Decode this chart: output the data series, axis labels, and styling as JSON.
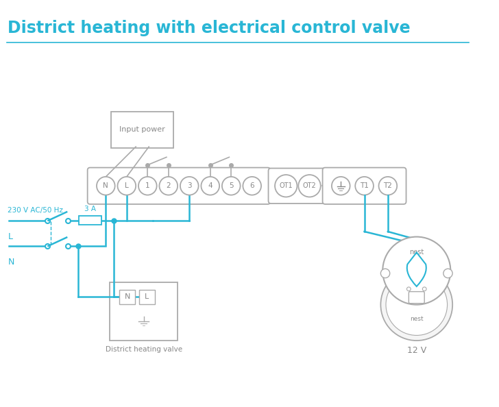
{
  "title": "District heating with electrical control valve",
  "title_color": "#29b6d5",
  "title_fontsize": 17,
  "line_color": "#29b6d5",
  "gray_color": "#aaaaaa",
  "text_gray": "#888888",
  "background_color": "#ffffff",
  "terminal_labels_main": [
    "N",
    "L",
    "1",
    "2",
    "3",
    "4",
    "5",
    "6"
  ],
  "ot_labels": [
    "OT1",
    "OT2"
  ],
  "right_term_labels": [
    "T1",
    "T2"
  ],
  "label_230v": "230 V AC/50 Hz",
  "label_L": "L",
  "label_N": "N",
  "label_3A": "3 A",
  "label_input_power": "Input power",
  "label_district": "District heating valve",
  "label_12v": "12 V",
  "label_nest": "nest"
}
